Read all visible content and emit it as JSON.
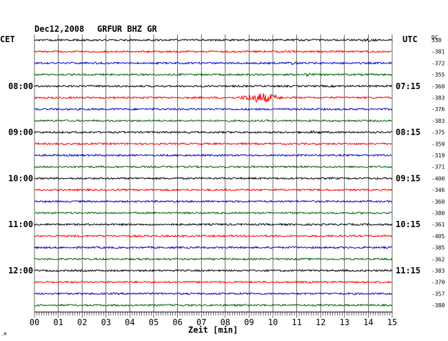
{
  "header": {
    "date": "Dec12,2008",
    "station": "GRFUR BHZ GR"
  },
  "left_timezone": "CET",
  "right_timezone": "UTC",
  "dc_label": "DC",
  "corner_mark": ".M",
  "chart_data": {
    "type": "line",
    "title": "Dec12,2008   GRFUR BHZ GR",
    "xlabel": "Zeit [min]",
    "xlim": [
      0,
      15
    ],
    "x_ticks": [
      "00",
      "01",
      "02",
      "03",
      "04",
      "05",
      "06",
      "07",
      "08",
      "09",
      "10",
      "11",
      "12",
      "13",
      "14",
      "15"
    ],
    "left_hour_labels": [
      {
        "row": 4,
        "text": "08:00"
      },
      {
        "row": 8,
        "text": "09:00"
      },
      {
        "row": 12,
        "text": "10:00"
      },
      {
        "row": 16,
        "text": "11:00"
      },
      {
        "row": 20,
        "text": "12:00"
      }
    ],
    "right_hour_labels": [
      {
        "row": 4,
        "text": "07:15"
      },
      {
        "row": 8,
        "text": "08:15"
      },
      {
        "row": 12,
        "text": "09:15"
      },
      {
        "row": 16,
        "text": "10:15"
      },
      {
        "row": 20,
        "text": "11:15"
      }
    ],
    "dc_values": [
      "338",
      "-381",
      "-372",
      "-355",
      "-360",
      "-383",
      "-376",
      "-383",
      "-375",
      "-359",
      "-319",
      "-371",
      "-400",
      "-346",
      "-360",
      "-380",
      "-361",
      "-405",
      "-385",
      "-362",
      "-383",
      "-370",
      "-357",
      "-380"
    ],
    "trace_colors": [
      "#000000",
      "#ff0000",
      "#0000cc",
      "#006600"
    ],
    "events": [
      {
        "row": 5,
        "x_min": 9.5,
        "width_min": 1.2,
        "amplitude": 8
      },
      {
        "row": 2,
        "x_min": 10.8,
        "width_min": 0.8,
        "amplitude": 2.5
      },
      {
        "row": 3,
        "x_min": 11.5,
        "width_min": 0.8,
        "amplitude": 2.5
      },
      {
        "row": 0,
        "x_min": 14.0,
        "width_min": 0.8,
        "amplitude": 2.5
      },
      {
        "row": 8,
        "x_min": 11.8,
        "width_min": 0.8,
        "amplitude": 2.5
      }
    ],
    "grid": true
  }
}
